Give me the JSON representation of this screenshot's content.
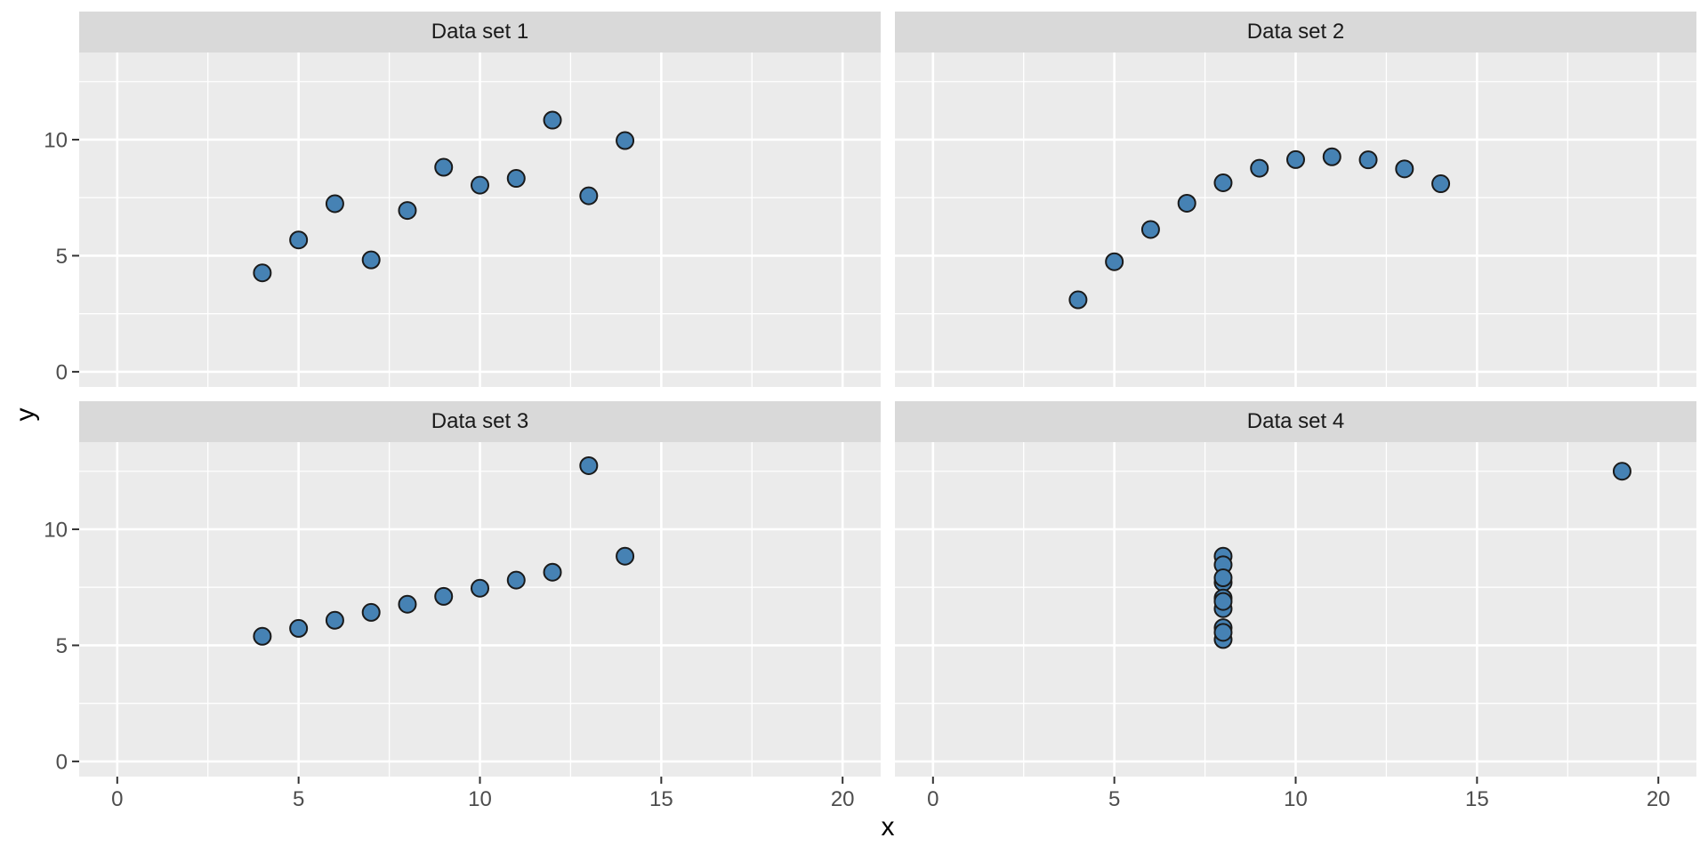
{
  "chart_data": {
    "type": "scatter",
    "xlabel": "x",
    "ylabel": "y",
    "x_ticks": [
      0,
      5,
      10,
      15,
      20
    ],
    "y_ticks": [
      0,
      5,
      10
    ],
    "x_minor": [
      2.5,
      7.5,
      12.5,
      17.5
    ],
    "y_minor": [
      2.5,
      7.5,
      12.5
    ],
    "xlim": [
      -1.05,
      21.05
    ],
    "ylim": [
      -0.655,
      13.755
    ],
    "grid": true,
    "legend": "none",
    "facets": [
      {
        "title": "Data set 1",
        "points": [
          [
            10,
            8.04
          ],
          [
            8,
            6.95
          ],
          [
            13,
            7.58
          ],
          [
            9,
            8.81
          ],
          [
            11,
            8.33
          ],
          [
            14,
            9.96
          ],
          [
            6,
            7.24
          ],
          [
            4,
            4.26
          ],
          [
            12,
            10.84
          ],
          [
            7,
            4.82
          ],
          [
            5,
            5.68
          ]
        ]
      },
      {
        "title": "Data set 2",
        "points": [
          [
            10,
            9.14
          ],
          [
            8,
            8.14
          ],
          [
            13,
            8.74
          ],
          [
            9,
            8.77
          ],
          [
            11,
            9.26
          ],
          [
            14,
            8.1
          ],
          [
            6,
            6.13
          ],
          [
            4,
            3.1
          ],
          [
            12,
            9.13
          ],
          [
            7,
            7.26
          ],
          [
            5,
            4.74
          ]
        ]
      },
      {
        "title": "Data set 3",
        "points": [
          [
            10,
            7.46
          ],
          [
            8,
            6.77
          ],
          [
            13,
            12.74
          ],
          [
            9,
            7.11
          ],
          [
            11,
            7.81
          ],
          [
            14,
            8.84
          ],
          [
            6,
            6.08
          ],
          [
            4,
            5.39
          ],
          [
            12,
            8.15
          ],
          [
            7,
            6.42
          ],
          [
            5,
            5.73
          ]
        ]
      },
      {
        "title": "Data set 4",
        "points": [
          [
            8,
            6.58
          ],
          [
            8,
            5.76
          ],
          [
            8,
            7.71
          ],
          [
            8,
            8.84
          ],
          [
            8,
            8.47
          ],
          [
            8,
            7.04
          ],
          [
            8,
            5.25
          ],
          [
            19,
            12.5
          ],
          [
            8,
            5.56
          ],
          [
            8,
            7.91
          ],
          [
            8,
            6.89
          ]
        ]
      }
    ],
    "point_style": {
      "radius": 9.5,
      "fill": "#4682B4",
      "stroke": "#1A1A1A",
      "stroke_width": 2
    },
    "colors": {
      "background": "#FFFFFF",
      "panel_bg": "#EBEBEB",
      "strip_bg": "#D9D9D9",
      "strip_text": "#1A1A1A",
      "grid": "#FFFFFF",
      "tick_label": "#4D4D4D",
      "tick_mark": "#333333",
      "axis_title": "#000000"
    }
  }
}
